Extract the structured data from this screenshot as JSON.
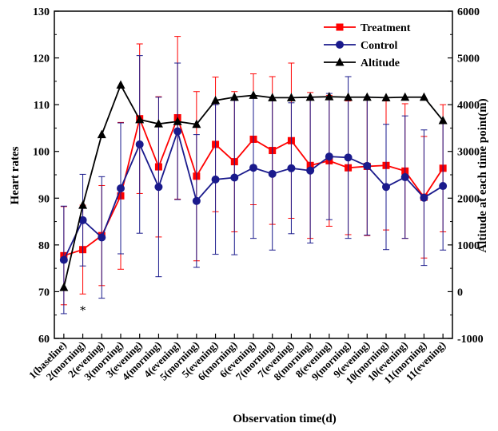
{
  "chart_data": {
    "type": "line",
    "categories": [
      "1(baseline)",
      "2(morning)",
      "2(evening)",
      "3(morning)",
      "3(evening)",
      "4(morning)",
      "4(evening)",
      "5(morning)",
      "5(evening)",
      "6(morning)",
      "6(evening)",
      "7(morning)",
      "7(evening)",
      "8(morning)",
      "8(evening)",
      "9(morning)",
      "9(evening)",
      "10(morning)",
      "10(evening)",
      "11(morning)",
      "11(evening)"
    ],
    "series": [
      {
        "name": "Treatment",
        "axis": "left",
        "color": "#ff0000",
        "marker": "square",
        "values": [
          77.7,
          79.0,
          82.0,
          90.5,
          107.0,
          96.7,
          107.2,
          94.7,
          101.5,
          97.8,
          102.6,
          100.2,
          102.3,
          97.0,
          98.0,
          96.5,
          96.8,
          97.0,
          95.8,
          90.2,
          96.4
        ],
        "errors": [
          10.5,
          9.5,
          10.7,
          15.7,
          16.0,
          15.0,
          17.4,
          18.1,
          14.4,
          15.0,
          14.0,
          15.8,
          16.6,
          15.6,
          14.0,
          14.3,
          14.8,
          13.8,
          14.4,
          13.0,
          13.6
        ]
      },
      {
        "name": "Control",
        "axis": "left",
        "color": "#1a1a8c",
        "marker": "circle",
        "values": [
          76.8,
          85.3,
          81.6,
          92.1,
          101.5,
          92.4,
          104.3,
          89.4,
          94.0,
          94.4,
          96.5,
          95.2,
          96.4,
          95.9,
          98.9,
          98.7,
          96.9,
          92.4,
          94.5,
          90.1,
          92.6
        ],
        "errors": [
          11.5,
          9.8,
          13.0,
          14.0,
          19.0,
          19.2,
          14.6,
          14.2,
          16.0,
          16.5,
          15.1,
          16.3,
          14.0,
          15.5,
          13.5,
          17.3,
          14.8,
          13.4,
          13.1,
          14.5,
          13.7
        ]
      },
      {
        "name": "Altitude",
        "axis": "right",
        "color": "#000000",
        "marker": "triangle",
        "values": [
          90,
          1850,
          3360,
          4420,
          3680,
          3590,
          3640,
          3580,
          4090,
          4160,
          4200,
          4150,
          4150,
          4160,
          4170,
          4160,
          4160,
          4150,
          4160,
          4160,
          3660
        ]
      }
    ],
    "annotations": [
      {
        "text": "*",
        "category": "2(morning)",
        "value": 66.5
      }
    ],
    "xlabel": "Observation time(d)",
    "ylabel": "Heart rates",
    "y2label": "Altitude at each time point(m)",
    "ylim": [
      60,
      130
    ],
    "yticks": [
      60,
      70,
      80,
      90,
      100,
      110,
      120,
      130
    ],
    "y2lim": [
      -1000,
      6000
    ],
    "y2ticks": [
      -1000,
      0,
      1000,
      2000,
      3000,
      4000,
      5000,
      6000
    ],
    "grid": false,
    "legend_position": "top-right"
  }
}
